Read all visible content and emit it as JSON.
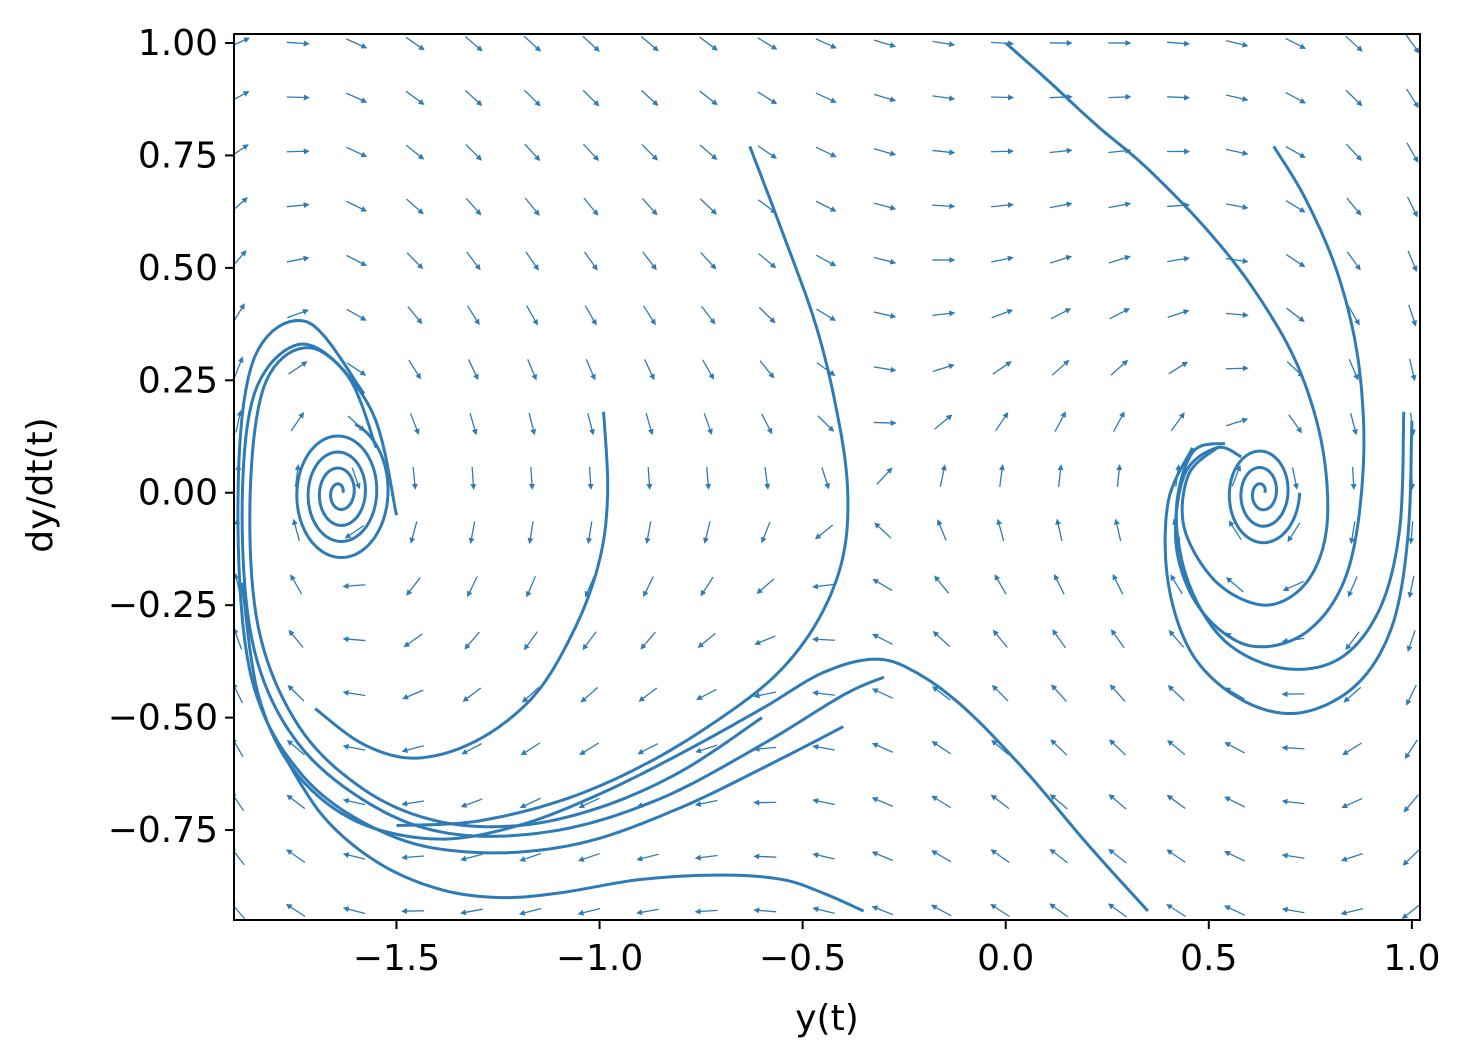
{
  "chart_data": {
    "type": "streamplot",
    "xlabel": "y(t)",
    "ylabel": "dy/dt(t)",
    "xlim": [
      -1.9,
      1.02
    ],
    "ylim": [
      -0.95,
      1.02
    ],
    "x_ticks": [
      "−1.5",
      "−1.0",
      "−0.5",
      "0.0",
      "0.5",
      "1.0"
    ],
    "x_tick_values": [
      -1.5,
      -1.0,
      -0.5,
      0.0,
      0.5,
      1.0
    ],
    "y_ticks": [
      "1.00",
      "0.75",
      "0.50",
      "0.25",
      "0.00",
      "−0.25",
      "−0.50",
      "−0.75"
    ],
    "y_tick_values": [
      1.0,
      0.75,
      0.5,
      0.25,
      0.0,
      -0.25,
      -0.5,
      -0.75
    ],
    "grid": false,
    "color": "#2f7bb6",
    "fixed_points": [
      {
        "name": "left-spiral-center",
        "x": -1.64,
        "y": 0.0
      },
      {
        "name": "right-spiral-center",
        "x": 0.63,
        "y": 0.0
      }
    ],
    "trajectories": [
      {
        "name": "left-inner-spiral",
        "center": [
          -1.64,
          0.0
        ],
        "r_start": 0.01,
        "r_end": 0.16,
        "turns": 4.2
      },
      {
        "name": "left-outer-spiral",
        "points": [
          [
            -1.5,
            -0.05
          ],
          [
            -1.56,
            0.18
          ],
          [
            -1.7,
            0.32
          ],
          [
            -1.82,
            0.25
          ],
          [
            -1.86,
            0.0
          ],
          [
            -1.84,
            -0.3
          ],
          [
            -1.74,
            -0.52
          ],
          [
            -1.58,
            -0.66
          ],
          [
            -1.4,
            -0.73
          ],
          [
            -1.2,
            -0.74
          ],
          [
            -1.0,
            -0.7
          ],
          [
            -0.8,
            -0.62
          ],
          [
            -0.6,
            -0.5
          ]
        ]
      },
      {
        "name": "left-outer-spiral-2",
        "points": [
          [
            -1.55,
            0.1
          ],
          [
            -1.62,
            0.26
          ],
          [
            -1.74,
            0.33
          ],
          [
            -1.85,
            0.22
          ],
          [
            -1.88,
            -0.05
          ],
          [
            -1.85,
            -0.35
          ],
          [
            -1.74,
            -0.56
          ],
          [
            -1.55,
            -0.7
          ],
          [
            -1.35,
            -0.76
          ],
          [
            -1.1,
            -0.75
          ],
          [
            -0.85,
            -0.68
          ],
          [
            -0.6,
            -0.56
          ],
          [
            -0.4,
            -0.45
          ],
          [
            -0.3,
            -0.41
          ]
        ]
      },
      {
        "name": "left-outer-spiral-3",
        "points": [
          [
            -1.58,
            0.22
          ],
          [
            -1.72,
            0.38
          ],
          [
            -1.85,
            0.3
          ],
          [
            -1.89,
            0.0
          ],
          [
            -1.86,
            -0.4
          ],
          [
            -1.73,
            -0.63
          ],
          [
            -1.52,
            -0.76
          ],
          [
            -1.3,
            -0.8
          ],
          [
            -1.05,
            -0.78
          ],
          [
            -0.8,
            -0.7
          ],
          [
            -0.55,
            -0.59
          ],
          [
            -0.4,
            -0.52
          ]
        ]
      },
      {
        "name": "curve-from-minus-one",
        "points": [
          [
            -0.99,
            0.18
          ],
          [
            -0.98,
            0.0
          ],
          [
            -1.0,
            -0.15
          ],
          [
            -1.06,
            -0.3
          ],
          [
            -1.16,
            -0.45
          ],
          [
            -1.3,
            -0.55
          ],
          [
            -1.45,
            -0.59
          ],
          [
            -1.58,
            -0.56
          ],
          [
            -1.7,
            -0.48
          ]
        ]
      },
      {
        "name": "curve-from-top-center",
        "points": [
          [
            -0.63,
            0.77
          ],
          [
            -0.55,
            0.58
          ],
          [
            -0.47,
            0.38
          ],
          [
            -0.42,
            0.2
          ],
          [
            -0.39,
            0.02
          ],
          [
            -0.4,
            -0.14
          ],
          [
            -0.46,
            -0.28
          ],
          [
            -0.56,
            -0.4
          ],
          [
            -0.7,
            -0.5
          ],
          [
            -0.88,
            -0.6
          ],
          [
            -1.08,
            -0.68
          ],
          [
            -1.3,
            -0.73
          ],
          [
            -1.5,
            -0.74
          ]
        ]
      },
      {
        "name": "curve-through-bottom-center",
        "points": [
          [
            0.35,
            -0.93
          ],
          [
            0.2,
            -0.78
          ],
          [
            0.05,
            -0.62
          ],
          [
            -0.1,
            -0.48
          ],
          [
            -0.22,
            -0.4
          ],
          [
            -0.32,
            -0.37
          ],
          [
            -0.45,
            -0.4
          ],
          [
            -0.6,
            -0.48
          ],
          [
            -0.8,
            -0.58
          ],
          [
            -1.0,
            -0.67
          ],
          [
            -1.2,
            -0.74
          ],
          [
            -1.4,
            -0.77
          ],
          [
            -1.6,
            -0.73
          ],
          [
            -1.75,
            -0.62
          ],
          [
            -1.84,
            -0.45
          ],
          [
            -1.88,
            -0.2
          ]
        ]
      },
      {
        "name": "bottom-curve",
        "points": [
          [
            -0.35,
            -0.93
          ],
          [
            -0.45,
            -0.89
          ],
          [
            -0.55,
            -0.86
          ],
          [
            -0.7,
            -0.85
          ],
          [
            -0.9,
            -0.86
          ],
          [
            -1.1,
            -0.89
          ],
          [
            -1.25,
            -0.9
          ],
          [
            -1.4,
            -0.88
          ],
          [
            -1.55,
            -0.82
          ],
          [
            -1.68,
            -0.72
          ],
          [
            -1.78,
            -0.58
          ]
        ]
      },
      {
        "name": "right-inner-spiral",
        "center": [
          0.63,
          0.0
        ],
        "r_start": 0.01,
        "r_end": 0.12,
        "turns": 3.0
      },
      {
        "name": "right-outer-spiral",
        "points": [
          [
            0.0,
            1.0
          ],
          [
            0.1,
            0.92
          ],
          [
            0.22,
            0.82
          ],
          [
            0.35,
            0.72
          ],
          [
            0.5,
            0.58
          ],
          [
            0.62,
            0.44
          ],
          [
            0.72,
            0.28
          ],
          [
            0.78,
            0.1
          ],
          [
            0.79,
            -0.08
          ],
          [
            0.74,
            -0.2
          ],
          [
            0.64,
            -0.25
          ],
          [
            0.52,
            -0.2
          ],
          [
            0.44,
            -0.08
          ],
          [
            0.45,
            0.04
          ],
          [
            0.52,
            0.1
          ]
        ]
      },
      {
        "name": "right-outer-spiral-2",
        "points": [
          [
            0.66,
            0.77
          ],
          [
            0.74,
            0.65
          ],
          [
            0.82,
            0.48
          ],
          [
            0.87,
            0.28
          ],
          [
            0.88,
            0.05
          ],
          [
            0.84,
            -0.18
          ],
          [
            0.74,
            -0.31
          ],
          [
            0.6,
            -0.34
          ],
          [
            0.48,
            -0.26
          ],
          [
            0.42,
            -0.12
          ],
          [
            0.44,
            0.04
          ],
          [
            0.52,
            0.1
          ],
          [
            0.58,
            0.08
          ]
        ]
      },
      {
        "name": "right-outer-spiral-3",
        "points": [
          [
            0.98,
            0.18
          ],
          [
            0.97,
            -0.08
          ],
          [
            0.92,
            -0.26
          ],
          [
            0.82,
            -0.37
          ],
          [
            0.68,
            -0.39
          ],
          [
            0.54,
            -0.33
          ],
          [
            0.45,
            -0.2
          ],
          [
            0.42,
            -0.04
          ],
          [
            0.46,
            0.09
          ],
          [
            0.54,
            0.11
          ]
        ]
      },
      {
        "name": "right-outer-spiral-4",
        "points": [
          [
            1.0,
            0.16
          ],
          [
            0.99,
            -0.1
          ],
          [
            0.95,
            -0.3
          ],
          [
            0.86,
            -0.43
          ],
          [
            0.72,
            -0.49
          ],
          [
            0.58,
            -0.46
          ],
          [
            0.46,
            -0.36
          ],
          [
            0.4,
            -0.2
          ],
          [
            0.4,
            -0.02
          ],
          [
            0.46,
            0.1
          ]
        ]
      }
    ],
    "quiver_grid": {
      "nx": 21,
      "ny": 17
    },
    "vector_field": {
      "description": "arrows point from left-to-right along upper band, downward-left in lower band"
    }
  }
}
